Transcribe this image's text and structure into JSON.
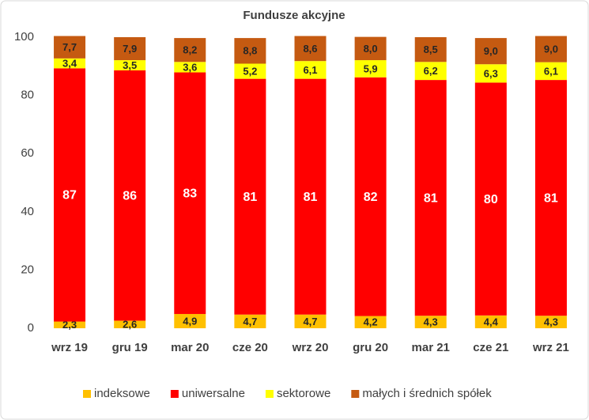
{
  "chart_data": {
    "type": "stacked_bar",
    "title": "Fundusze akcyjne",
    "categories": [
      "wrz 19",
      "gru 19",
      "mar 20",
      "cze 20",
      "wrz 20",
      "gru 20",
      "mar 21",
      "cze 21",
      "wrz 21"
    ],
    "series": [
      {
        "name": "indeksowe",
        "color": "#FFC000",
        "values": [
          2.3,
          2.6,
          4.9,
          4.7,
          4.7,
          4.2,
          4.3,
          4.4,
          4.3
        ],
        "value_labels": [
          "2,3",
          "2,6",
          "4,9",
          "4,7",
          "4,7",
          "4,2",
          "4,3",
          "4,4",
          "4,3"
        ]
      },
      {
        "name": "uniwersalne",
        "color": "#FF0000",
        "values": [
          87,
          86,
          83,
          81,
          81,
          82,
          81,
          80,
          81
        ]
      },
      {
        "name": "sektorowe",
        "color": "#FFFF00",
        "values": [
          3.4,
          3.5,
          3.6,
          5.2,
          6.1,
          5.9,
          6.2,
          6.3,
          6.1
        ],
        "value_labels": [
          "3,4",
          "3,5",
          "3,6",
          "5,2",
          "6,1",
          "5,9",
          "6,2",
          "6,3",
          "6,1"
        ]
      },
      {
        "name": "małych i średnich spółek",
        "color": "#C55A11",
        "values": [
          7.7,
          7.9,
          8.2,
          8.8,
          8.6,
          8.0,
          8.5,
          9.0,
          9.0
        ],
        "value_labels": [
          "7,7",
          "7,9",
          "8,2",
          "8,8",
          "8,6",
          "8,0",
          "8,5",
          "9,0",
          "9,0"
        ]
      }
    ],
    "ylim": [
      0,
      100
    ],
    "yticks": [
      0,
      20,
      40,
      60,
      80,
      100
    ],
    "grid": false,
    "legend": "bottom"
  }
}
